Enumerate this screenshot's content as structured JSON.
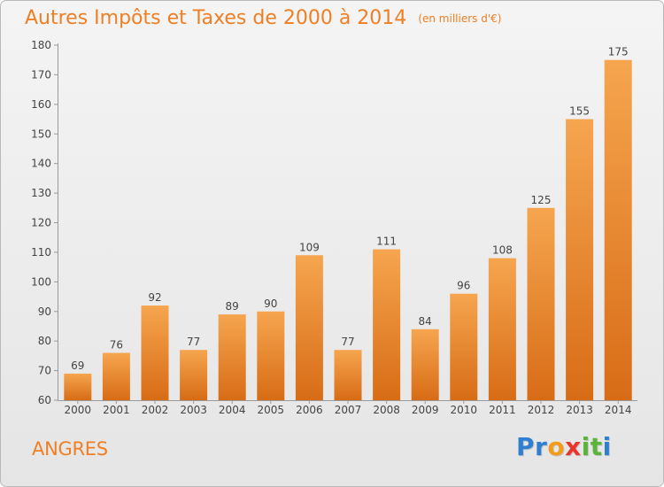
{
  "chart_data": {
    "type": "bar",
    "title": "Autres Impôts et Taxes de 2000 à 2014",
    "subtitle": "(en milliers d'€)",
    "categories": [
      "2000",
      "2001",
      "2002",
      "2003",
      "2004",
      "2005",
      "2006",
      "2007",
      "2008",
      "2009",
      "2010",
      "2011",
      "2012",
      "2013",
      "2014"
    ],
    "values": [
      69,
      76,
      92,
      77,
      89,
      90,
      109,
      77,
      111,
      84,
      96,
      108,
      125,
      155,
      175
    ],
    "ylim": [
      60,
      180
    ],
    "yticks": [
      60,
      70,
      80,
      90,
      100,
      110,
      120,
      130,
      140,
      150,
      160,
      170,
      180
    ],
    "grid": false,
    "bar_color_top": "#f6a54f",
    "bar_color_bottom": "#d86c16",
    "text_color": "#ef7f24"
  },
  "footer": {
    "location": "ANGRES"
  },
  "logo": {
    "text": "Proxiti",
    "letters": [
      {
        "char": "P",
        "color": "#2f7fd0"
      },
      {
        "char": "r",
        "color": "#2f7fd0"
      },
      {
        "char": "o",
        "color": "#f39c19"
      },
      {
        "char": "x",
        "color": "#e8362c"
      },
      {
        "char": "i",
        "color": "#5bb43a"
      },
      {
        "char": "t",
        "color": "#5bb43a"
      },
      {
        "char": "i",
        "color": "#2f7fd0"
      }
    ]
  }
}
